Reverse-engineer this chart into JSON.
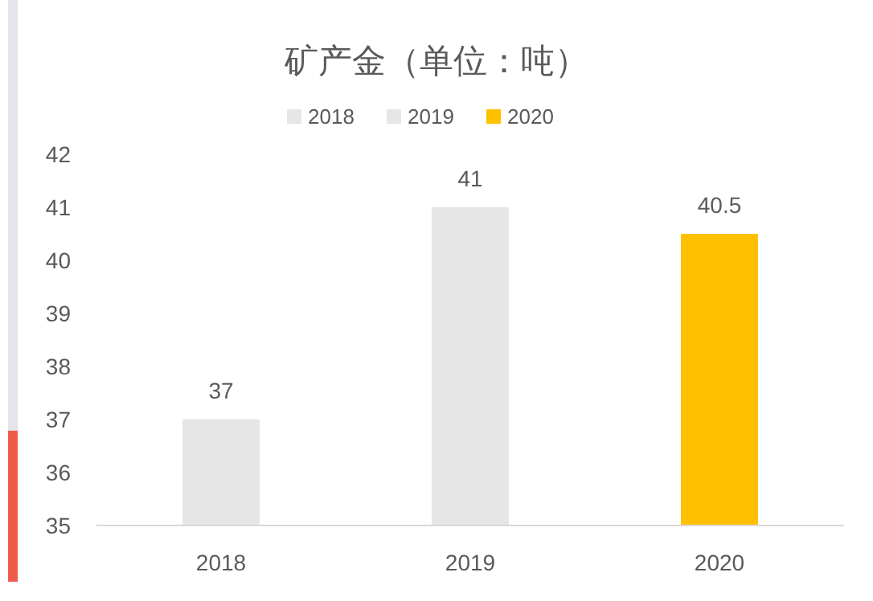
{
  "chart_data": {
    "type": "bar",
    "title": "矿产金（单位：吨）",
    "categories": [
      "2018",
      "2019",
      "2020"
    ],
    "series": [
      {
        "name": "2018",
        "color": "#e6e6e6",
        "values": [
          37,
          null,
          null
        ]
      },
      {
        "name": "2019",
        "color": "#e6e6e6",
        "values": [
          null,
          41,
          null
        ]
      },
      {
        "name": "2020",
        "color": "#ffc000",
        "values": [
          null,
          null,
          40.5
        ]
      }
    ],
    "ylim": [
      35,
      42
    ],
    "yticks": [
      35,
      36,
      37,
      38,
      39,
      40,
      41,
      42
    ],
    "grid": false,
    "legend": "top",
    "data_labels": true
  }
}
